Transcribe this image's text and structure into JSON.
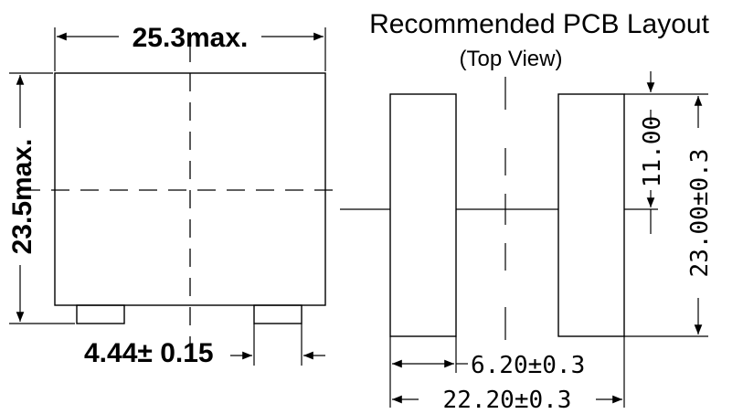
{
  "title": "Recommended PCB Layout",
  "subtitle": "(Top View)",
  "component": {
    "width_label": "25.3max.",
    "height_label": "23.5max.",
    "pad_label": "4.44± 0.15"
  },
  "pcb": {
    "gap_label": "11.00",
    "pad_length_label": "23.00±0.3",
    "pad_width_label": "6.20±0.3",
    "overall_width_label": "22.20±0.3"
  }
}
